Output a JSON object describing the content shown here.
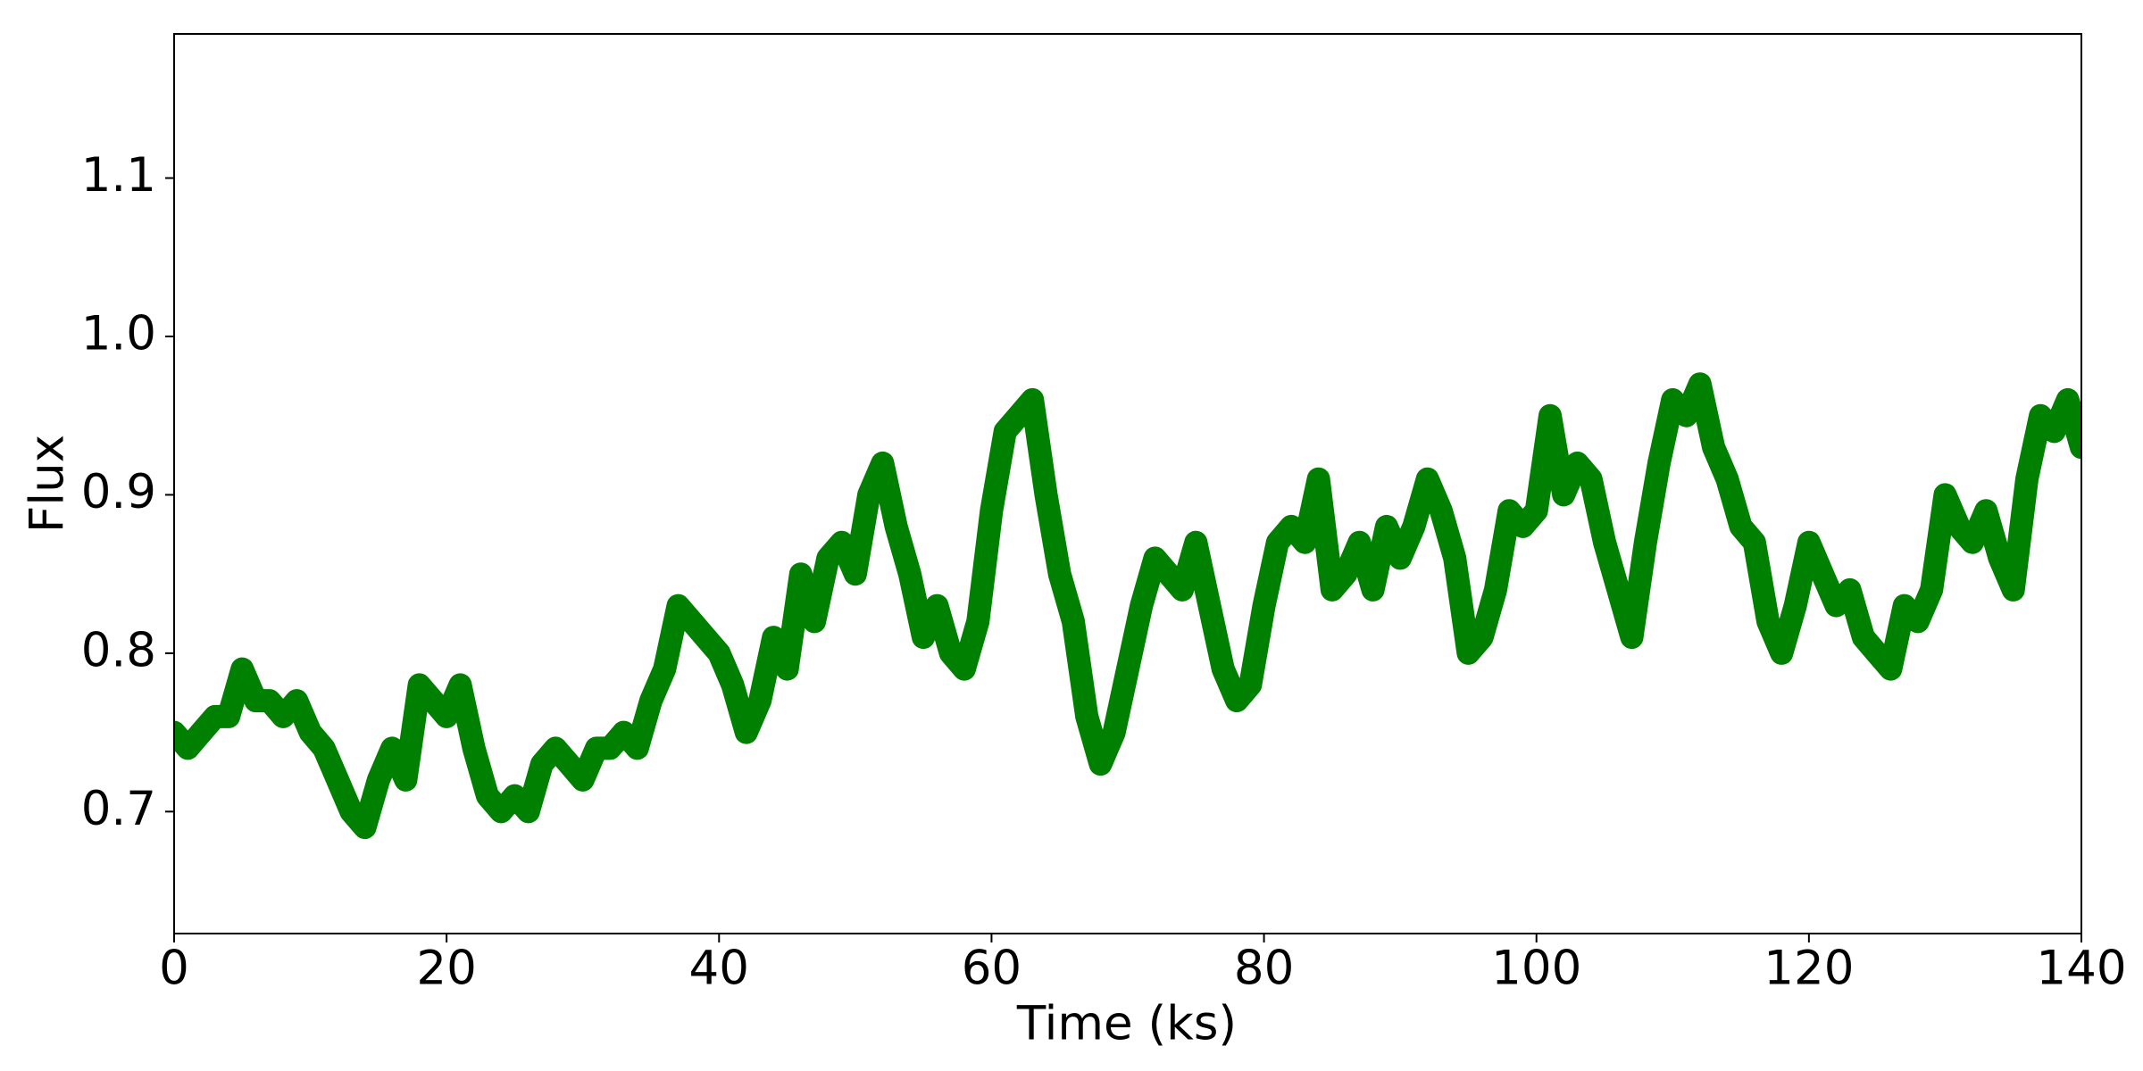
{
  "chart_data": {
    "type": "line",
    "x_label": "Time (ks)",
    "y_label": "Flux",
    "x": [
      0,
      1,
      2,
      3,
      4,
      5,
      6,
      7,
      8,
      9,
      10,
      11,
      12,
      13,
      14,
      15,
      16,
      17,
      18,
      19,
      20,
      21,
      22,
      23,
      24,
      25,
      26,
      27,
      28,
      29,
      30,
      31,
      32,
      33,
      34,
      35,
      36,
      37,
      38,
      39,
      40,
      41,
      42,
      43,
      44,
      45,
      46,
      47,
      48,
      49,
      50,
      51,
      52,
      53,
      54,
      55,
      56,
      57,
      58,
      59,
      60,
      61,
      62,
      63,
      64,
      65,
      66,
      67,
      68,
      69,
      70,
      71,
      72,
      73,
      74,
      75,
      76,
      77,
      78,
      79,
      80,
      81,
      82,
      83,
      84,
      85,
      86,
      87,
      88,
      89,
      90,
      91,
      92,
      93,
      94,
      95,
      96,
      97,
      98,
      99,
      100,
      101,
      102,
      103,
      104,
      105,
      106,
      107,
      108,
      109,
      110,
      111,
      112,
      113,
      114,
      115,
      116,
      117,
      118,
      119,
      120,
      121,
      122,
      123,
      124,
      125,
      126,
      127,
      128,
      129,
      130,
      131,
      132,
      133,
      134,
      135,
      136,
      137,
      138,
      139,
      140
    ],
    "series": [
      {
        "color": "#008000",
        "values": [
          0.75,
          0.74,
          0.75,
          0.76,
          0.76,
          0.79,
          0.77,
          0.77,
          0.76,
          0.77,
          0.75,
          0.74,
          0.72,
          0.7,
          0.69,
          0.72,
          0.74,
          0.72,
          0.78,
          0.77,
          0.76,
          0.78,
          0.74,
          0.71,
          0.7,
          0.71,
          0.7,
          0.73,
          0.74,
          0.73,
          0.72,
          0.74,
          0.74,
          0.75,
          0.74,
          0.77,
          0.79,
          0.83,
          0.82,
          0.81,
          0.8,
          0.78,
          0.75,
          0.77,
          0.81,
          0.79,
          0.85,
          0.82,
          0.86,
          0.87,
          0.85,
          0.9,
          0.92,
          0.88,
          0.85,
          0.81,
          0.83,
          0.8,
          0.79,
          0.82,
          0.89,
          0.94,
          0.95,
          0.96,
          0.9,
          0.85,
          0.82,
          0.76,
          0.73,
          0.75,
          0.79,
          0.83,
          0.86,
          0.85,
          0.84,
          0.87,
          0.83,
          0.79,
          0.77,
          0.78,
          0.83,
          0.87,
          0.88,
          0.87,
          0.91,
          0.84,
          0.85,
          0.87,
          0.84,
          0.88,
          0.86,
          0.88,
          0.91,
          0.89,
          0.86,
          0.8,
          0.81,
          0.84,
          0.89,
          0.88,
          0.89,
          0.95,
          0.9,
          0.92,
          0.91,
          0.87,
          0.84,
          0.81,
          0.87,
          0.92,
          0.96,
          0.95,
          0.97,
          0.93,
          0.91,
          0.88,
          0.87,
          0.82,
          0.8,
          0.83,
          0.87,
          0.85,
          0.83,
          0.84,
          0.81,
          0.8,
          0.79,
          0.83,
          0.82,
          0.84,
          0.9,
          0.88,
          0.87,
          0.89,
          0.86,
          0.84,
          0.91,
          0.95,
          0.94,
          0.96,
          0.93
        ]
      }
    ],
    "xlim": [
      0,
      140
    ],
    "xticks": [
      0,
      20,
      40,
      60,
      80,
      100,
      120,
      140
    ],
    "ylim": [
      0.623,
      1.191
    ],
    "yticks": [
      0.7,
      0.8,
      0.9,
      {
        "value": 1.0,
        "label": "1.0"
      },
      1.1
    ]
  }
}
